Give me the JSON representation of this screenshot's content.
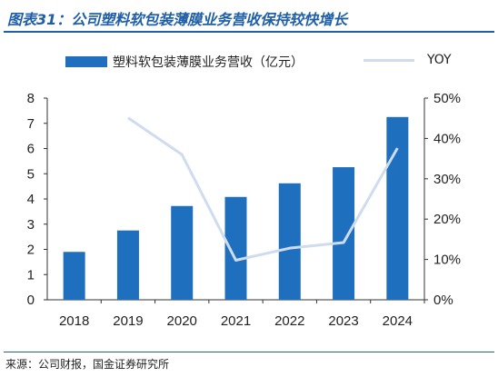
{
  "title": "图表31：公司塑料软包装薄膜业务营收保持较快增长",
  "source": "来源：公司财报，国金证券研究所",
  "chart_data": {
    "type": "bar",
    "categories": [
      "2018",
      "2019",
      "2020",
      "2021",
      "2022",
      "2023",
      "2024"
    ],
    "series": [
      {
        "name": "塑料软包装薄膜业务营收（亿元）",
        "type": "bar",
        "axis": "left",
        "values": [
          1.9,
          2.75,
          3.72,
          4.08,
          4.62,
          5.26,
          7.25
        ],
        "color": "#1f6fbf"
      },
      {
        "name": "YOY",
        "type": "line",
        "axis": "right",
        "values": [
          null,
          45.1,
          36.0,
          9.8,
          12.8,
          14.2,
          37.6
        ],
        "color": "#cfdcf0"
      }
    ],
    "left_axis": {
      "ylim": [
        0,
        8
      ],
      "ticks": [
        "0",
        "1",
        "2",
        "3",
        "4",
        "5",
        "6",
        "7",
        "8"
      ]
    },
    "right_axis": {
      "ylim": [
        0,
        50
      ],
      "ticks": [
        "0%",
        "10%",
        "20%",
        "30%",
        "40%",
        "50%"
      ]
    },
    "legend_position": "top",
    "grid": false
  }
}
